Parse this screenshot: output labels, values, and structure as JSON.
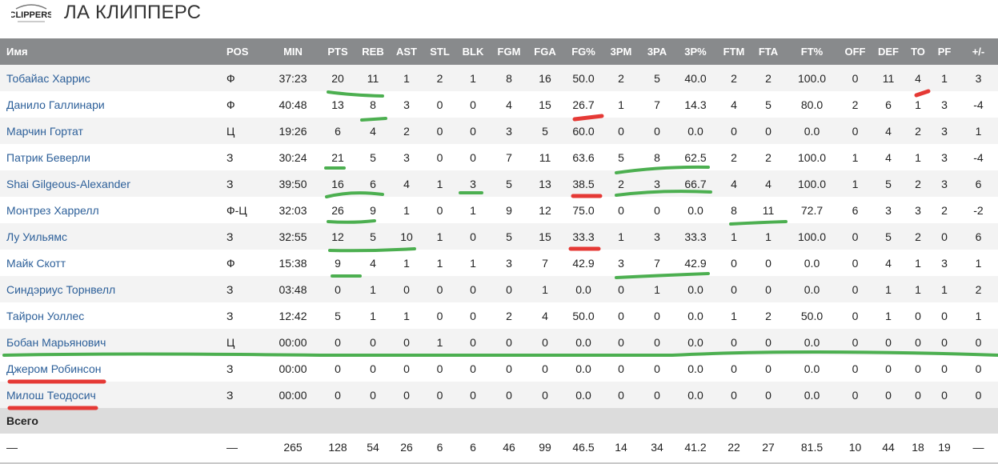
{
  "team": {
    "logo_text": "CLIPPERS",
    "title": "ЛА КЛИППЕРС"
  },
  "colors": {
    "header_bg": "#888a8c",
    "name_link": "#2c5f99",
    "green_mark": "#4caf50",
    "red_mark": "#e53935"
  },
  "table": {
    "columns": [
      "Имя",
      "POS",
      "MIN",
      "PTS",
      "REB",
      "AST",
      "STL",
      "BLK",
      "FGM",
      "FGA",
      "FG%",
      "3PM",
      "3PA",
      "3P%",
      "FTM",
      "FTA",
      "FT%",
      "OFF",
      "DEF",
      "TO",
      "PF",
      "+/-"
    ],
    "rows": [
      [
        "Тобайас Харрис",
        "Ф",
        "37:23",
        "20",
        "11",
        "1",
        "2",
        "1",
        "8",
        "16",
        "50.0",
        "2",
        "5",
        "40.0",
        "2",
        "2",
        "100.0",
        "0",
        "11",
        "4",
        "1",
        "3"
      ],
      [
        "Данило Галлинари",
        "Ф",
        "40:48",
        "13",
        "8",
        "3",
        "0",
        "0",
        "4",
        "15",
        "26.7",
        "1",
        "7",
        "14.3",
        "4",
        "5",
        "80.0",
        "2",
        "6",
        "1",
        "3",
        "-4"
      ],
      [
        "Марчин Гортат",
        "Ц",
        "19:26",
        "6",
        "4",
        "2",
        "0",
        "0",
        "3",
        "5",
        "60.0",
        "0",
        "0",
        "0.0",
        "0",
        "0",
        "0.0",
        "0",
        "4",
        "2",
        "3",
        "1"
      ],
      [
        "Патрик Беверли",
        "З",
        "30:24",
        "21",
        "5",
        "3",
        "0",
        "0",
        "7",
        "11",
        "63.6",
        "5",
        "8",
        "62.5",
        "2",
        "2",
        "100.0",
        "1",
        "4",
        "1",
        "3",
        "-4"
      ],
      [
        "Shai Gilgeous-Alexander",
        "З",
        "39:50",
        "16",
        "6",
        "4",
        "1",
        "3",
        "5",
        "13",
        "38.5",
        "2",
        "3",
        "66.7",
        "4",
        "4",
        "100.0",
        "1",
        "5",
        "2",
        "3",
        "6"
      ],
      [
        "Монтрез Харрелл",
        "Ф-Ц",
        "32:03",
        "26",
        "9",
        "1",
        "0",
        "1",
        "9",
        "12",
        "75.0",
        "0",
        "0",
        "0.0",
        "8",
        "11",
        "72.7",
        "6",
        "3",
        "3",
        "2",
        "-2"
      ],
      [
        "Лу Уильямс",
        "З",
        "32:55",
        "12",
        "5",
        "10",
        "1",
        "0",
        "5",
        "15",
        "33.3",
        "1",
        "3",
        "33.3",
        "1",
        "1",
        "100.0",
        "0",
        "5",
        "2",
        "0",
        "6"
      ],
      [
        "Майк Скотт",
        "Ф",
        "15:38",
        "9",
        "4",
        "1",
        "1",
        "1",
        "3",
        "7",
        "42.9",
        "3",
        "7",
        "42.9",
        "0",
        "0",
        "0.0",
        "0",
        "4",
        "1",
        "3",
        "1"
      ],
      [
        "Синдэриус Торнвелл",
        "З",
        "03:48",
        "0",
        "1",
        "0",
        "0",
        "0",
        "0",
        "1",
        "0.0",
        "0",
        "1",
        "0.0",
        "0",
        "0",
        "0.0",
        "0",
        "1",
        "1",
        "1",
        "2"
      ],
      [
        "Тайрон Уоллес",
        "З",
        "12:42",
        "5",
        "1",
        "1",
        "0",
        "0",
        "2",
        "4",
        "50.0",
        "0",
        "0",
        "0.0",
        "1",
        "2",
        "50.0",
        "0",
        "1",
        "0",
        "0",
        "1"
      ],
      [
        "Бобан Марьянович",
        "Ц",
        "00:00",
        "0",
        "0",
        "0",
        "1",
        "0",
        "0",
        "0",
        "0.0",
        "0",
        "0",
        "0.0",
        "0",
        "0",
        "0.0",
        "0",
        "0",
        "0",
        "0",
        "0"
      ],
      [
        "Джером Робинсон",
        "З",
        "00:00",
        "0",
        "0",
        "0",
        "0",
        "0",
        "0",
        "0",
        "0.0",
        "0",
        "0",
        "0.0",
        "0",
        "0",
        "0.0",
        "0",
        "0",
        "0",
        "0",
        "0"
      ],
      [
        "Милош Теодосич",
        "З",
        "00:00",
        "0",
        "0",
        "0",
        "0",
        "0",
        "0",
        "0",
        "0.0",
        "0",
        "0",
        "0.0",
        "0",
        "0",
        "0.0",
        "0",
        "0",
        "0",
        "0",
        "0"
      ]
    ],
    "total_label": "Всего",
    "total_row": [
      "—",
      "—",
      "265",
      "128",
      "54",
      "26",
      "6",
      "6",
      "46",
      "99",
      "46.5",
      "14",
      "34",
      "41.2",
      "22",
      "27",
      "81.5",
      "10",
      "44",
      "18",
      "19",
      "—"
    ]
  }
}
